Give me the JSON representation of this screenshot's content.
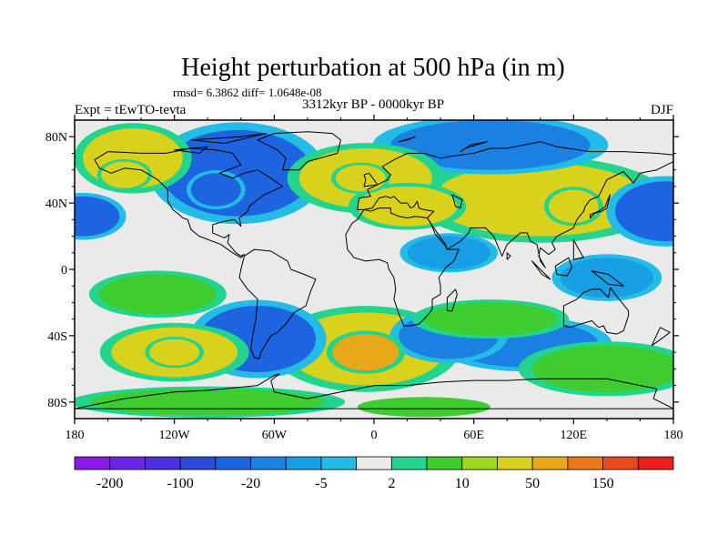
{
  "figure": {
    "title": "Height perturbation at 500 hPa (in m)",
    "stats": "rmsd= 6.3862 diff= 1.0648e-08",
    "left_label": "Expt = tEwTO-tevta",
    "center_label": "3312kyr BP - 0000kyr BP",
    "right_label": "DJF"
  },
  "axes": {
    "lat_ticks": [
      {
        "value": 80,
        "label": "80N"
      },
      {
        "value": 40,
        "label": "40N"
      },
      {
        "value": 0,
        "label": "0"
      },
      {
        "value": -40,
        "label": "40S"
      },
      {
        "value": -80,
        "label": "80S"
      }
    ],
    "lon_ticks": [
      {
        "value": -180,
        "label": "180"
      },
      {
        "value": -120,
        "label": "120W"
      },
      {
        "value": -60,
        "label": "60W"
      },
      {
        "value": 0,
        "label": "0"
      },
      {
        "value": 60,
        "label": "60E"
      },
      {
        "value": 120,
        "label": "120E"
      },
      {
        "value": 180,
        "label": "180"
      }
    ],
    "lon_range": [
      -180,
      180
    ],
    "lat_range": [
      -90,
      90
    ]
  },
  "colorbar": {
    "colors": [
      "#8a18e8",
      "#6a24e8",
      "#4a30e0",
      "#2e48d8",
      "#1c64e0",
      "#1a80e2",
      "#189ee4",
      "#22bce6",
      "#eaeaea",
      "#22d48c",
      "#3ecc2e",
      "#9ed81e",
      "#d8d21c",
      "#e8a818",
      "#e8781a",
      "#e84a1e",
      "#e81e1e"
    ],
    "tick_labels": [
      "-200",
      "-100",
      "-20",
      "-5",
      "2",
      "10",
      "50",
      "150"
    ]
  },
  "chart_data": {
    "type": "heatmap",
    "title": "Height perturbation at 500 hPa (in m)",
    "blobs": [
      {
        "lon": -145,
        "lat": 67,
        "rx": 30,
        "ry": 18,
        "value": 28
      },
      {
        "lon": -150,
        "lat": 57,
        "rx": 14,
        "ry": 8,
        "value": 35
      },
      {
        "lon": -175,
        "lat": 32,
        "rx": 22,
        "ry": 12,
        "value": -22
      },
      {
        "lon": -82,
        "lat": 58,
        "rx": 45,
        "ry": 26,
        "value": -32
      },
      {
        "lon": -95,
        "lat": 48,
        "rx": 15,
        "ry": 10,
        "value": -40
      },
      {
        "lon": -5,
        "lat": 55,
        "rx": 40,
        "ry": 18,
        "value": 30
      },
      {
        "lon": -8,
        "lat": 55,
        "rx": 15,
        "ry": 8,
        "value": 40
      },
      {
        "lon": 100,
        "lat": 42,
        "rx": 65,
        "ry": 22,
        "value": 35
      },
      {
        "lon": 120,
        "lat": 38,
        "rx": 15,
        "ry": 10,
        "value": 45
      },
      {
        "lon": 20,
        "lat": 38,
        "rx": 30,
        "ry": 12,
        "value": 22
      },
      {
        "lon": 70,
        "lat": 75,
        "rx": 60,
        "ry": 15,
        "value": -18
      },
      {
        "lon": 175,
        "lat": 35,
        "rx": 30,
        "ry": 18,
        "value": -25
      },
      {
        "lon": 45,
        "lat": 10,
        "rx": 25,
        "ry": 10,
        "value": -6
      },
      {
        "lon": 140,
        "lat": -5,
        "rx": 28,
        "ry": 12,
        "value": -8
      },
      {
        "lon": -130,
        "lat": -15,
        "rx": 35,
        "ry": 12,
        "value": 6
      },
      {
        "lon": -120,
        "lat": -50,
        "rx": 38,
        "ry": 15,
        "value": 30
      },
      {
        "lon": -120,
        "lat": -50,
        "rx": 15,
        "ry": 8,
        "value": 45
      },
      {
        "lon": -70,
        "lat": -42,
        "rx": 35,
        "ry": 20,
        "value": -25
      },
      {
        "lon": -5,
        "lat": -48,
        "rx": 48,
        "ry": 22,
        "value": 35
      },
      {
        "lon": -5,
        "lat": -50,
        "rx": 20,
        "ry": 11,
        "value": 55
      },
      {
        "lon": 45,
        "lat": -40,
        "rx": 30,
        "ry": 14,
        "value": -15
      },
      {
        "lon": 90,
        "lat": -45,
        "rx": 45,
        "ry": 14,
        "value": -12
      },
      {
        "lon": 140,
        "lat": -60,
        "rx": 45,
        "ry": 14,
        "value": 8
      },
      {
        "lon": 70,
        "lat": -30,
        "rx": 40,
        "ry": 10,
        "value": 7
      },
      {
        "lon": -100,
        "lat": -80,
        "rx": 70,
        "ry": 8,
        "value": 6
      },
      {
        "lon": 30,
        "lat": -83,
        "rx": 40,
        "ry": 6,
        "value": 5
      }
    ],
    "levels": [
      -200,
      -150,
      -100,
      -50,
      -20,
      -10,
      -5,
      -2,
      2,
      5,
      10,
      20,
      50,
      100,
      150,
      200
    ]
  }
}
